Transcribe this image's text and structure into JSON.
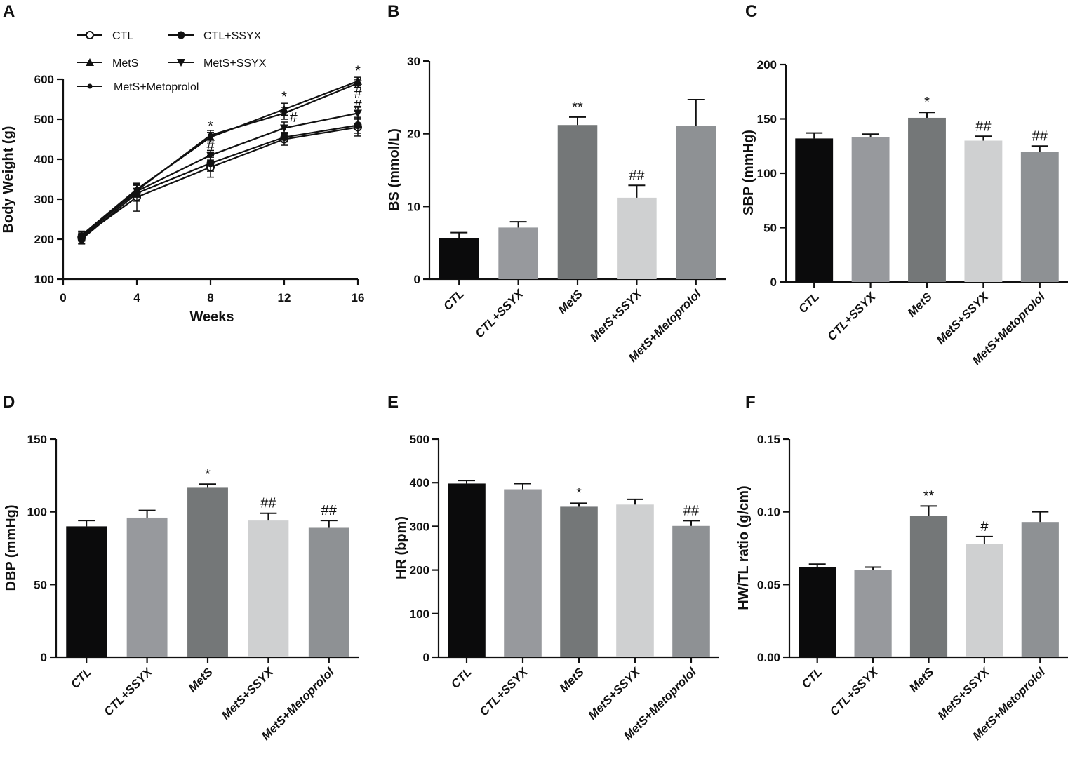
{
  "colors": {
    "CTL": "#0b0b0c",
    "CTL+SSYX": "#97999d",
    "MetS": "#747778",
    "MetS+SSYX": "#cfd0d1",
    "MetS+Metoprolol": "#8e9194",
    "axis": "#111111"
  },
  "chart_data": [
    {
      "panel": "A",
      "type": "line",
      "xlabel": "Weeks",
      "ylabel": "Body Weight (g)",
      "x": [
        1,
        4,
        8,
        12,
        16
      ],
      "xticks": [
        "0",
        "4",
        "8",
        "12",
        "16"
      ],
      "xlim": [
        0,
        16
      ],
      "ylim": [
        100,
        600
      ],
      "yticks": [
        "100",
        "200",
        "300",
        "400",
        "500",
        "600"
      ],
      "series": [
        {
          "name": "CTL",
          "marker": "open-circle",
          "values": [
            205,
            305,
            380,
            450,
            480
          ],
          "err": [
            15,
            35,
            25,
            15,
            22
          ]
        },
        {
          "name": "CTL+SSYX",
          "marker": "filled-circle",
          "values": [
            200,
            315,
            390,
            455,
            485
          ],
          "err": [
            12,
            20,
            20,
            12,
            20
          ]
        },
        {
          "name": "MetS",
          "marker": "triangle-up",
          "values": [
            210,
            325,
            455,
            525,
            595
          ],
          "err": [
            10,
            15,
            12,
            15,
            10
          ]
        },
        {
          "name": "MetS+SSYX",
          "marker": "triangle-down",
          "values": [
            205,
            320,
            410,
            478,
            515
          ],
          "err": [
            10,
            15,
            12,
            15,
            15
          ]
        },
        {
          "name": "MetS+Metoprolol",
          "marker": "small-dot",
          "values": [
            208,
            322,
            460,
            515,
            590
          ],
          "err": [
            10,
            15,
            12,
            15,
            10
          ]
        }
      ],
      "legend": [
        {
          "label": "CTL",
          "marker": "open-circle"
        },
        {
          "label": "CTL+SSYX",
          "marker": "filled-circle"
        },
        {
          "label": "MetS",
          "marker": "triangle-up"
        },
        {
          "label": "MetS+SSYX",
          "marker": "triangle-down"
        },
        {
          "label": "MetS+Metoprolol",
          "marker": "small-dot"
        }
      ],
      "annotations": [
        {
          "text": "*",
          "x": 8,
          "y": 472
        },
        {
          "text": "#",
          "x": 8,
          "y": 422
        },
        {
          "text": "*",
          "x": 12,
          "y": 545
        },
        {
          "text": "#",
          "x": 12.5,
          "y": 493
        },
        {
          "text": "*",
          "x": 16,
          "y": 610
        },
        {
          "text": "#",
          "x": 16,
          "y": 580
        },
        {
          "text": "#",
          "x": 16,
          "y": 553
        },
        {
          "text": "#",
          "x": 16,
          "y": 525
        }
      ]
    },
    {
      "panel": "B",
      "type": "bar",
      "ylabel": "BS (mmol/L)",
      "ylim": [
        0,
        30
      ],
      "yticks": [
        "0",
        "10",
        "20",
        "30"
      ],
      "categories": [
        "CTL",
        "CTL+SSYX",
        "MetS",
        "MetS+SSYX",
        "MetS+Metoprolol"
      ],
      "values": [
        5.6,
        7.1,
        21.2,
        11.2,
        21.1
      ],
      "errors": [
        0.8,
        0.8,
        1.1,
        1.7,
        3.6
      ],
      "annotations": [
        "",
        "",
        "**",
        "##",
        ""
      ]
    },
    {
      "panel": "C",
      "type": "bar",
      "ylabel": "SBP (mmHg)",
      "ylim": [
        0,
        200
      ],
      "yticks": [
        "0",
        "50",
        "100",
        "150",
        "200"
      ],
      "categories": [
        "CTL",
        "CTL+SSYX",
        "MetS",
        "MetS+SSYX",
        "MetS+Metoprolol"
      ],
      "values": [
        132,
        133,
        151,
        130,
        120
      ],
      "errors": [
        5,
        3,
        5,
        4,
        5
      ],
      "annotations": [
        "",
        "",
        "*",
        "##",
        "##"
      ]
    },
    {
      "panel": "D",
      "type": "bar",
      "ylabel": "DBP (mmHg)",
      "ylim": [
        0,
        150
      ],
      "yticks": [
        "0",
        "50",
        "100",
        "150"
      ],
      "categories": [
        "CTL",
        "CTL+SSYX",
        "MetS",
        "MetS+SSYX",
        "MetS+Metoprolol"
      ],
      "values": [
        90,
        96,
        117,
        94,
        89
      ],
      "errors": [
        4,
        5,
        2,
        5,
        5
      ],
      "annotations": [
        "",
        "",
        "*",
        "##",
        "##"
      ]
    },
    {
      "panel": "E",
      "type": "bar",
      "ylabel": "HR (bpm)",
      "ylim": [
        0,
        500
      ],
      "yticks": [
        "0",
        "100",
        "200",
        "300",
        "400",
        "500"
      ],
      "categories": [
        "CTL",
        "CTL+SSYX",
        "MetS",
        "MetS+SSYX",
        "MetS+Metoprolol"
      ],
      "values": [
        398,
        385,
        345,
        350,
        301
      ],
      "errors": [
        7,
        13,
        8,
        12,
        12
      ],
      "annotations": [
        "",
        "",
        "*",
        "",
        "##"
      ]
    },
    {
      "panel": "F",
      "type": "bar",
      "ylabel": "HW/TL ratio (g/cm)",
      "ylim": [
        0,
        0.15
      ],
      "yticks": [
        "0.00",
        "0.05",
        "0.10",
        "0.15"
      ],
      "categories": [
        "CTL",
        "CTL+SSYX",
        "MetS",
        "MetS+SSYX",
        "MetS+Metoprolol"
      ],
      "values": [
        0.062,
        0.06,
        0.097,
        0.078,
        0.093
      ],
      "errors": [
        0.002,
        0.002,
        0.007,
        0.005,
        0.007
      ],
      "annotations": [
        "",
        "",
        "**",
        "#",
        ""
      ]
    }
  ]
}
